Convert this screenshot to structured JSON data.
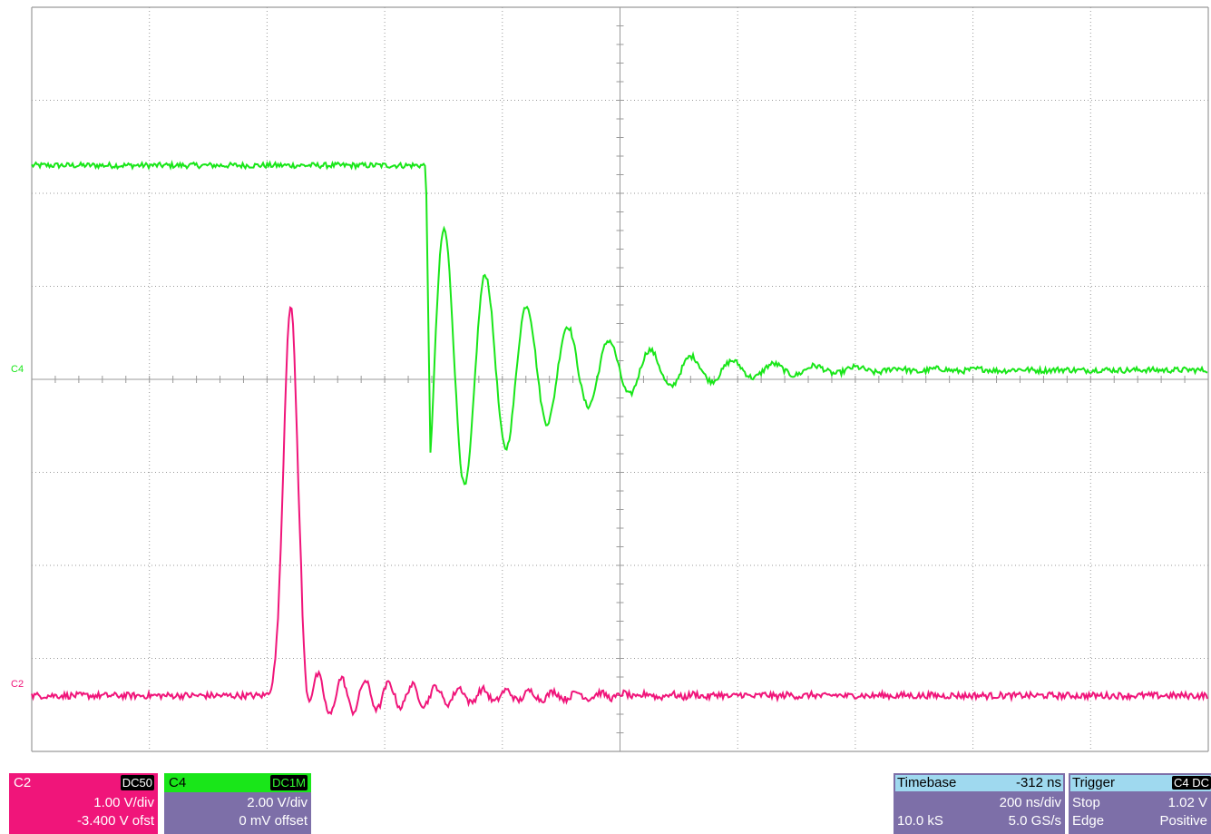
{
  "colors": {
    "grid_bg": "#ffffff",
    "grid_line": "#9a9a9a",
    "c2": "#f0157a",
    "c4": "#19e619",
    "panel_bg": "#7d6fa8",
    "panel_text": "#ffffff"
  },
  "trace_markers": {
    "c4": "C4",
    "c2": "C2"
  },
  "channels": [
    {
      "id": "C2",
      "coupling": "DC50",
      "scale": "1.00 V/div",
      "offset": "-3.400 V ofst"
    },
    {
      "id": "C4",
      "coupling": "DC1M",
      "scale": "2.00 V/div",
      "offset": "0 mV offset"
    }
  ],
  "timebase": {
    "label": "Timebase",
    "delay": "-312 ns",
    "scale": "200 ns/div",
    "samples": "10.0 kS",
    "rate": "5.0 GS/s"
  },
  "trigger": {
    "label": "Trigger",
    "source": "C4 DC",
    "level": "1.02 V",
    "mode": "Stop",
    "type": "Edge",
    "slope": "Positive"
  },
  "chart_data": {
    "type": "line",
    "x_divisions": 10,
    "y_divisions": 8,
    "series": [
      {
        "name": "C4",
        "description_free": true,
        "initial_level_div": 2.3,
        "step_time_div": 3.35,
        "final_level_div": 0.1,
        "ring_amplitude_div": 1.8,
        "ring_period_div": 0.35
      },
      {
        "name": "C2",
        "baseline_div": -3.4,
        "peak_time_div": 2.2,
        "peak_level_div": 0.8
      }
    ]
  }
}
